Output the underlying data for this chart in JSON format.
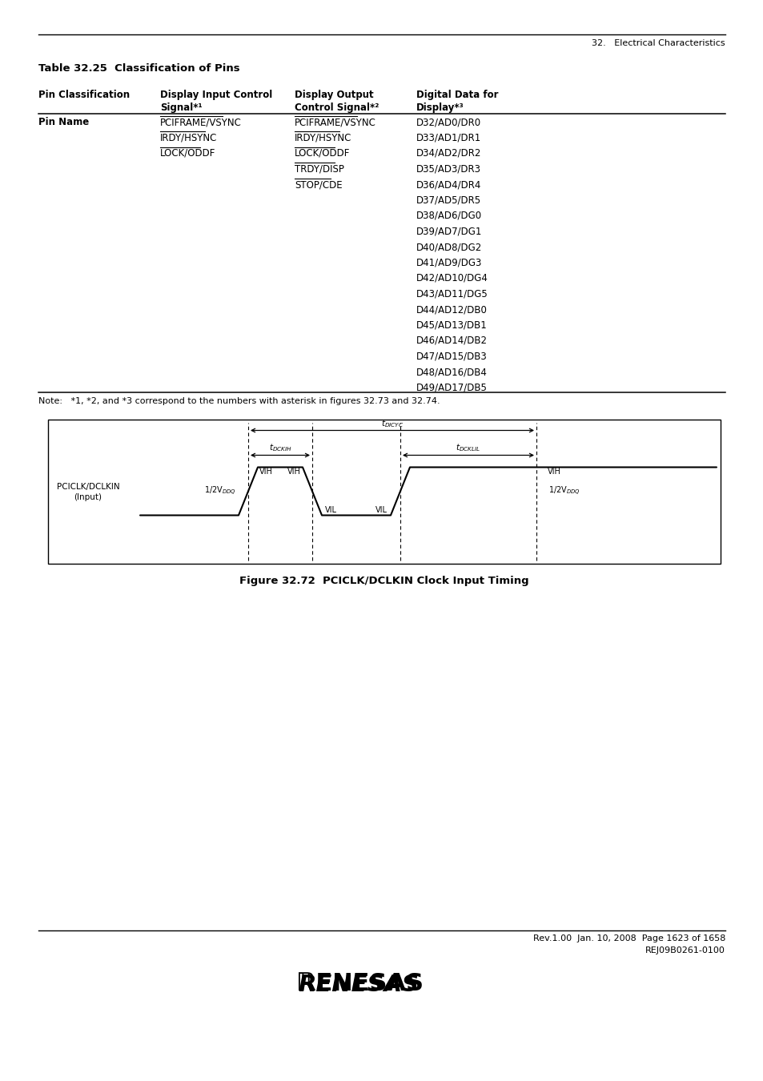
{
  "page_header": "32.   Electrical Characteristics",
  "table_title": "Table 32.25  Classification of Pins",
  "col_headers_line1": [
    "Pin Classification",
    "Display Input Control",
    "Display Output",
    "Digital Data for"
  ],
  "col_headers_line2": [
    "",
    "Signal*¹",
    "Control Signal*²",
    "Display*³"
  ],
  "pin_name_label": "Pin Name",
  "display_input": [
    "PCIFRAME/VSYNC",
    "IRDY/HSYNC",
    "LOCK/ODDF"
  ],
  "display_output": [
    "PCIFRAME/VSYNC",
    "IRDY/HSYNC",
    "LOCK/ODDF",
    "TRDY/DISP",
    "STOP/CDE"
  ],
  "digital_data": [
    "D32/AD0/DR0",
    "D33/AD1/DR1",
    "D34/AD2/DR2",
    "D35/AD3/DR3",
    "D36/AD4/DR4",
    "D37/AD5/DR5",
    "D38/AD6/DG0",
    "D39/AD7/DG1",
    "D40/AD8/DG2",
    "D41/AD9/DG3",
    "D42/AD10/DG4",
    "D43/AD11/DG5",
    "D44/AD12/DB0",
    "D45/AD13/DB1",
    "D46/AD14/DB2",
    "D47/AD15/DB3",
    "D48/AD16/DB4",
    "D49/AD17/DB5"
  ],
  "note_text": "Note:   *1, *2, and *3 correspond to the numbers with asterisk in figures 32.73 and 32.74.",
  "figure_caption": "Figure 32.72  PCICLK/DCLKIN Clock Input Timing",
  "footer_line1": "Rev.1.00  Jan. 10, 2008  Page 1623 of 1658",
  "footer_line2": "REJ09B0261-0100",
  "bg_color": "#ffffff"
}
